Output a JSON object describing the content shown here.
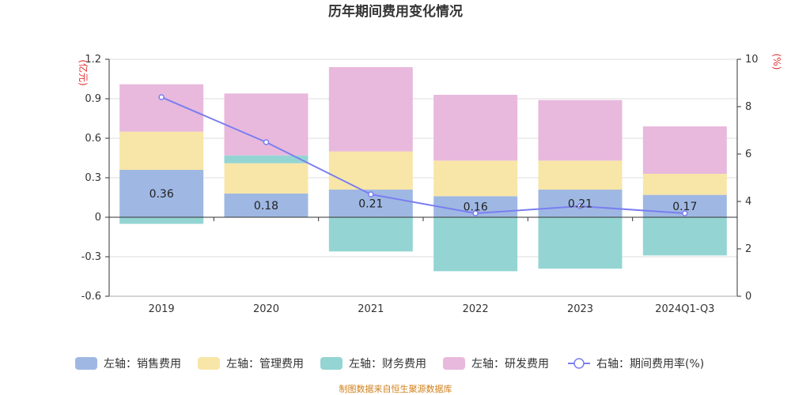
{
  "chart_data": {
    "type": "bar",
    "title": "历年期间费用变化情况",
    "categories": [
      "2019",
      "2020",
      "2021",
      "2022",
      "2023",
      "2024Q1-Q3"
    ],
    "left_axis": {
      "unit": "(亿元)",
      "ylim": [
        -0.6,
        1.2
      ],
      "ticks": [
        "1.2",
        "0.9",
        "0.6",
        "0.3",
        "0",
        "-0.3",
        "-0.6"
      ]
    },
    "right_axis": {
      "unit": "(%)",
      "ylim": [
        0,
        10
      ],
      "ticks": [
        "10",
        "8",
        "6",
        "4",
        "2",
        "0"
      ]
    },
    "series": [
      {
        "name": "左轴：销售费用",
        "type": "bar",
        "color": "#9fb8e3",
        "values": [
          0.36,
          0.18,
          0.21,
          0.16,
          0.21,
          0.17
        ],
        "labels": [
          "0.36",
          "0.18",
          "0.21",
          "0.16",
          "0.21",
          "0.17"
        ]
      },
      {
        "name": "左轴：管理费用",
        "type": "bar",
        "color": "#f8e6a8",
        "values": [
          0.29,
          0.23,
          0.29,
          0.27,
          0.22,
          0.16
        ]
      },
      {
        "name": "左轴：财务费用",
        "type": "bar",
        "color": "#94d5d3",
        "values": [
          -0.05,
          0.06,
          -0.26,
          -0.41,
          -0.39,
          -0.29
        ]
      },
      {
        "name": "左轴：研发费用",
        "type": "bar",
        "color": "#e8b9dc",
        "values": [
          0.36,
          0.47,
          0.64,
          0.5,
          0.46,
          0.36
        ]
      },
      {
        "name": "右轴：期间费用率(%)",
        "type": "line",
        "color": "#7a7ef0",
        "values": [
          8.4,
          6.5,
          4.3,
          3.5,
          3.8,
          3.5
        ]
      }
    ],
    "grid": true,
    "legend_position": "bottom",
    "source": "制图数据来自恒生聚源数据库"
  }
}
